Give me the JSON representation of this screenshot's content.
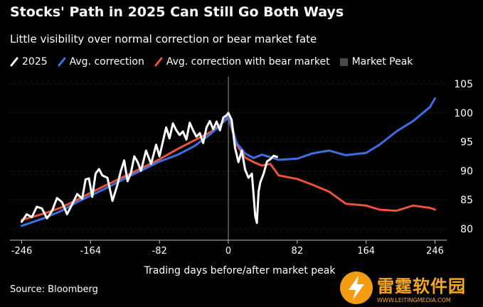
{
  "title": "Stocks' Path in 2025 Can Still Go Both Ways",
  "subtitle": "Little visibility over normal correction or bear market fate",
  "legend": {
    "s2025": "2025",
    "avg_correction": "Avg. correction",
    "avg_bear": "Avg. correction with bear market",
    "peak": "Market Peak"
  },
  "source": "Source: Bloomberg",
  "watermark": {
    "cn": "雷霆软件园",
    "url": "WWW.LEITINGMEDIA.COM"
  },
  "colors": {
    "background": "#000000",
    "s2025": "#ffffff",
    "avg_correction": "#3d6fe0",
    "avg_bear": "#e8553a",
    "market_peak": "#4a4a4a",
    "grid": "#3a3a3a"
  },
  "chart_data": {
    "type": "line",
    "xlabel": "Trading days before/after market peak",
    "ylabel": "",
    "x_ticks": [
      "-246",
      "-164",
      "-82",
      "0",
      "82",
      "164",
      "246"
    ],
    "y_ticks": [
      "80",
      "85",
      "90",
      "95",
      "100",
      "105"
    ],
    "xlim": [
      -260,
      260
    ],
    "ylim": [
      79,
      106
    ],
    "y_axis_position": "right",
    "grid": "horizontal dotted",
    "legend_placement": "top-left",
    "market_peak_x": 0,
    "series": [
      {
        "name": "2025",
        "color": "#ffffff",
        "x": [
          -246,
          -240,
          -234,
          -228,
          -222,
          -216,
          -210,
          -204,
          -198,
          -192,
          -186,
          -180,
          -174,
          -170,
          -166,
          -162,
          -158,
          -154,
          -150,
          -144,
          -138,
          -132,
          -128,
          -124,
          -120,
          -116,
          -112,
          -108,
          -104,
          -98,
          -92,
          -86,
          -82,
          -78,
          -74,
          -70,
          -66,
          -62,
          -58,
          -54,
          -50,
          -46,
          -42,
          -38,
          -34,
          -30,
          -26,
          -22,
          -18,
          -14,
          -10,
          -6,
          -2,
          0,
          4,
          8,
          12,
          16,
          20,
          24,
          28,
          30,
          32,
          34,
          36,
          38,
          42,
          46,
          50,
          54,
          58
        ],
        "y": [
          81.2,
          82.5,
          82.0,
          83.8,
          83.5,
          81.8,
          83.0,
          85.3,
          84.6,
          82.5,
          84.2,
          86.0,
          85.2,
          88.5,
          88.7,
          85.5,
          89.5,
          90.3,
          89.2,
          88.8,
          84.8,
          87.6,
          90.0,
          91.8,
          88.2,
          89.6,
          92.5,
          91.5,
          90.0,
          93.5,
          91.2,
          94.5,
          92.5,
          95.0,
          97.5,
          95.6,
          98.2,
          97.0,
          96.2,
          96.8,
          95.4,
          98.3,
          97.0,
          95.9,
          96.5,
          94.8,
          97.5,
          98.6,
          97.2,
          98.5,
          97.0,
          99.2,
          99.6,
          100.0,
          98.8,
          94.0,
          91.5,
          93.5,
          90.2,
          88.8,
          89.5,
          86.0,
          82.2,
          81.0,
          86.4,
          88.0,
          89.5,
          91.6,
          92.0,
          92.6,
          92.4
        ]
      },
      {
        "name": "Avg. correction",
        "color": "#3d6fe0",
        "x": [
          -246,
          -220,
          -200,
          -180,
          -160,
          -140,
          -120,
          -100,
          -82,
          -60,
          -40,
          -20,
          -10,
          0,
          10,
          20,
          30,
          40,
          60,
          82,
          100,
          120,
          140,
          164,
          180,
          200,
          220,
          240,
          246
        ],
        "y": [
          80.5,
          81.8,
          83.0,
          84.6,
          86.0,
          87.4,
          88.9,
          90.3,
          91.6,
          92.8,
          94.3,
          96.5,
          97.8,
          99.5,
          94.8,
          93.0,
          92.2,
          92.8,
          91.9,
          92.1,
          93.0,
          93.5,
          92.7,
          93.1,
          94.5,
          96.8,
          98.6,
          101.0,
          102.5
        ]
      },
      {
        "name": "Avg. correction with bear market",
        "color": "#e8553a",
        "x": [
          -246,
          -220,
          -200,
          -180,
          -160,
          -140,
          -120,
          -100,
          -82,
          -60,
          -40,
          -20,
          -10,
          0,
          10,
          20,
          30,
          40,
          50,
          60,
          82,
          100,
          120,
          140,
          164,
          180,
          200,
          220,
          240,
          246
        ],
        "y": [
          81.5,
          82.6,
          83.6,
          85.0,
          86.5,
          87.9,
          89.3,
          90.7,
          92.0,
          93.8,
          95.3,
          96.8,
          97.9,
          99.2,
          94.5,
          92.3,
          91.5,
          90.9,
          91.2,
          89.2,
          88.6,
          87.6,
          86.4,
          84.3,
          84.0,
          83.3,
          83.1,
          84.0,
          83.6,
          83.3
        ]
      }
    ]
  }
}
